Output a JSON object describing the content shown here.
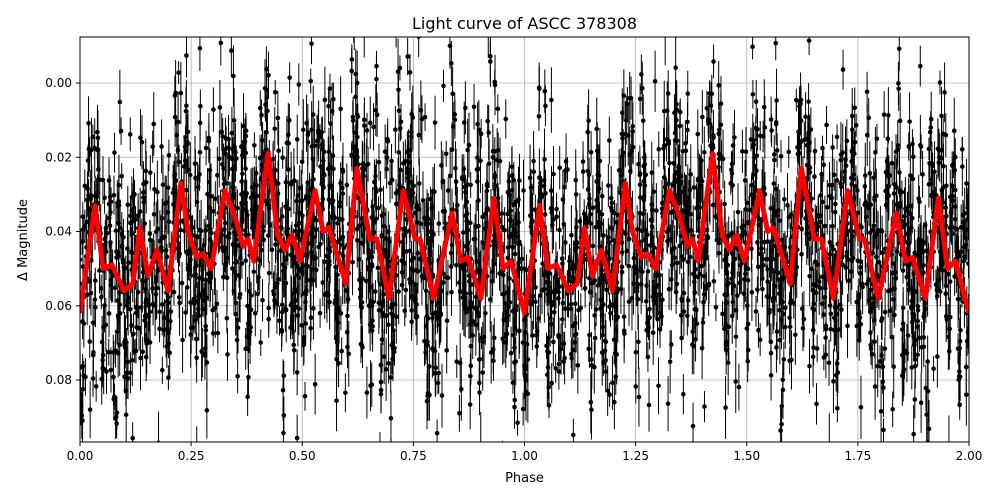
{
  "chart_data": {
    "type": "scatter",
    "title": "Light curve of ASCC 378308",
    "xlabel": "Phase",
    "ylabel": "Δ Magnitude",
    "xlim": [
      0.0,
      2.0
    ],
    "ylim": [
      0.0967,
      -0.0124
    ],
    "y_inverted": true,
    "grid": true,
    "x_ticks": [
      "0.00",
      "0.25",
      "0.50",
      "0.75",
      "1.00",
      "1.25",
      "1.50",
      "1.75",
      "2.00"
    ],
    "x_tick_values": [
      0,
      0.25,
      0.5,
      0.75,
      1.0,
      1.25,
      1.5,
      1.75,
      2.0
    ],
    "y_ticks": [
      "0.00",
      "0.02",
      "0.04",
      "0.06",
      "0.08"
    ],
    "y_tick_values": [
      0,
      0.02,
      0.04,
      0.06,
      0.08
    ],
    "period_repeat": 1.0,
    "observations": {
      "color": "#000000",
      "marker": "circle with vertical error bars",
      "scatter_about_model": 0.03
    },
    "model": {
      "color": "#ff0000",
      "phase": [
        0,
        0.034,
        0.052,
        0.072,
        0.099,
        0.119,
        0.135,
        0.153,
        0.173,
        0.198,
        0.227,
        0.243,
        0.263,
        0.277,
        0.295,
        0.326,
        0.349,
        0.367,
        0.378,
        0.391,
        0.423,
        0.445,
        0.461,
        0.477,
        0.495,
        0.529,
        0.547,
        0.56,
        0.598,
        0.623,
        0.652,
        0.668,
        0.695,
        0.727,
        0.754,
        0.765,
        0.796,
        0.837,
        0.857,
        0.873,
        0.902,
        0.931,
        0.952,
        0.97,
        1.0
      ],
      "magnitude": [
        0.062,
        0.033,
        0.05,
        0.049,
        0.056,
        0.054,
        0.039,
        0.052,
        0.045,
        0.056,
        0.027,
        0.04,
        0.047,
        0.046,
        0.05,
        0.029,
        0.036,
        0.044,
        0.042,
        0.048,
        0.019,
        0.041,
        0.045,
        0.041,
        0.048,
        0.029,
        0.04,
        0.039,
        0.054,
        0.023,
        0.042,
        0.042,
        0.058,
        0.029,
        0.042,
        0.042,
        0.058,
        0.035,
        0.048,
        0.047,
        0.058,
        0.031,
        0.05,
        0.048,
        0.062
      ]
    }
  }
}
